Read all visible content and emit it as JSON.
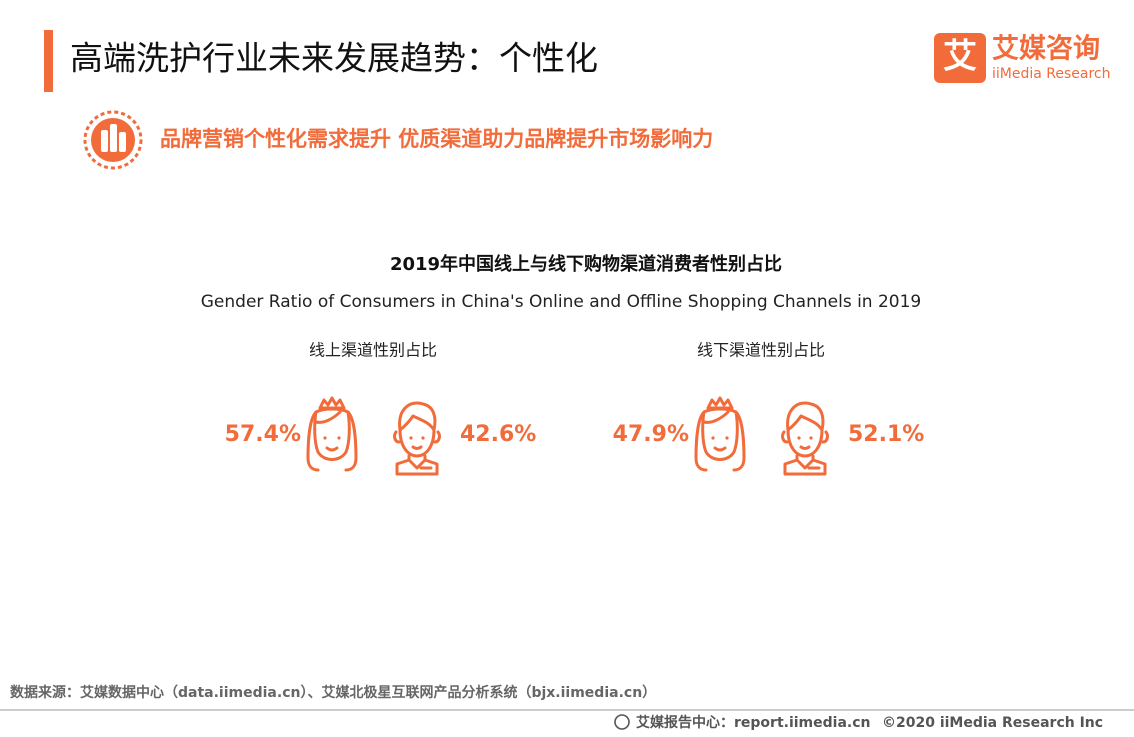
{
  "header": {
    "title": "高端洗护行业未来发展趋势：个性化",
    "logo": {
      "mark": "艾",
      "name": "艾媒咨询",
      "name_en": "iiMedia Research"
    }
  },
  "subtitle": "品牌营销个性化需求提升  优质渠道助力品牌提升市场影响力",
  "figure": {
    "title": "2019年中国线上与线下购物渠道消费者性别占比",
    "title_en": "Gender Ratio of Consumers in China's Online and Offline Shopping Channels in 2019",
    "panels": [
      {
        "label": "线上渠道性别占比",
        "female": "57.4%",
        "male": "42.6%"
      },
      {
        "label": "线下渠道性别占比",
        "female": "47.9%",
        "male": "52.1%"
      }
    ]
  },
  "footer": {
    "source": "数据来源：艾媒数据中心（data.iimedia.cn）、艾媒北极星互联网产品分析系统（bjx.iimedia.cn）",
    "site": "艾媒报告中心：report.iimedia.cn",
    "copyright": "©2020  iiMedia Research  Inc"
  }
}
